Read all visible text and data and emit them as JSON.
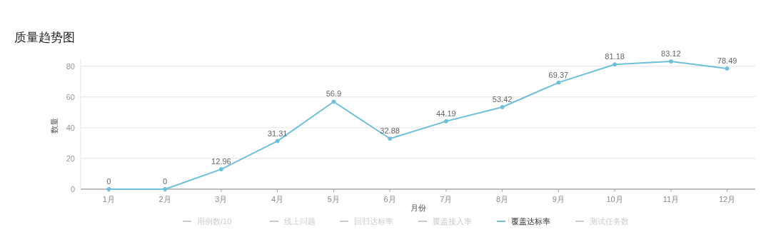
{
  "chart_data": {
    "type": "line",
    "title": "质量趋势图",
    "xlabel": "月份",
    "ylabel": "数量",
    "categories": [
      "1月",
      "2月",
      "3月",
      "4月",
      "5月",
      "6月",
      "7月",
      "8月",
      "9月",
      "10月",
      "11月",
      "12月"
    ],
    "series": [
      {
        "name": "用例数/10",
        "color": "#cccccc",
        "values": [
          null,
          null,
          null,
          null,
          null,
          null,
          null,
          null,
          null,
          null,
          null,
          null
        ]
      },
      {
        "name": "线上问题",
        "color": "#cccccc",
        "values": [
          null,
          null,
          null,
          null,
          null,
          null,
          null,
          null,
          null,
          null,
          null,
          null
        ]
      },
      {
        "name": "回归达标率",
        "color": "#cccccc",
        "values": [
          null,
          null,
          null,
          null,
          null,
          null,
          null,
          null,
          null,
          null,
          null,
          null
        ]
      },
      {
        "name": "覆盖接入率",
        "color": "#cccccc",
        "values": [
          null,
          null,
          null,
          null,
          null,
          null,
          null,
          null,
          null,
          null,
          null,
          null
        ]
      },
      {
        "name": "覆盖达标率",
        "color": "#6cc0dc",
        "values": [
          0,
          0,
          12.96,
          31.31,
          56.9,
          32.88,
          44.19,
          53.42,
          69.37,
          81.18,
          83.12,
          78.49
        ]
      },
      {
        "name": "测试任务数",
        "color": "#cccccc",
        "values": [
          null,
          null,
          null,
          null,
          null,
          null,
          null,
          null,
          null,
          null,
          null,
          null
        ]
      }
    ],
    "ylim": [
      0,
      85
    ],
    "yticks": [
      0,
      20,
      40,
      60,
      80
    ],
    "grid": "y",
    "legend": "bottom",
    "marker": "circle",
    "data_labels": true
  }
}
